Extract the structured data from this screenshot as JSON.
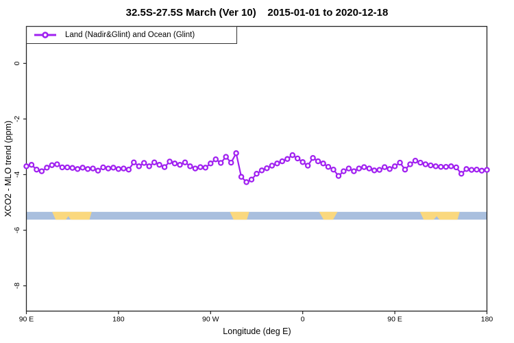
{
  "figure": {
    "title": "32.5S-27.5S March (Ver 10)    2015-01-01 to 2020-12-18"
  },
  "chart_data": {
    "type": "line",
    "title": "32.5S-27.5S March (Ver 10)    2015-01-01 to 2020-12-18",
    "xlabel": "Longitude (deg E)",
    "ylabel": "XCO2 - MLO trend (ppm)",
    "legend_label": "Land (Nadir&Glint) and Ocean (Glint)",
    "legend_position": "top-left",
    "grid": false,
    "xlim": [
      90,
      540
    ],
    "ylim_bottom": -8.91,
    "ylim_top": 1.33,
    "x_ticks": [
      {
        "lon": 90,
        "label": "90 E"
      },
      {
        "lon": 180,
        "label": "180"
      },
      {
        "lon": 270,
        "label": "90 W"
      },
      {
        "lon": 360,
        "label": "0"
      },
      {
        "lon": 450,
        "label": "90 E"
      },
      {
        "lon": 540,
        "label": "180"
      }
    ],
    "y_ticks": [
      {
        "value": 0,
        "label": "0"
      },
      {
        "value": -2,
        "label": "-2"
      },
      {
        "value": -4,
        "label": "-4"
      },
      {
        "value": -6,
        "label": "-6"
      },
      {
        "value": -8,
        "label": "-8"
      }
    ],
    "series": [
      {
        "name": "Land (Nadir&Glint) and Ocean (Glint)",
        "color": "#A020F0",
        "marker": "open-circle",
        "x_start": 90,
        "x_step": 5,
        "values": [
          -3.7,
          -3.65,
          -3.82,
          -3.88,
          -3.75,
          -3.66,
          -3.63,
          -3.74,
          -3.74,
          -3.76,
          -3.8,
          -3.75,
          -3.8,
          -3.78,
          -3.86,
          -3.74,
          -3.78,
          -3.75,
          -3.8,
          -3.78,
          -3.82,
          -3.56,
          -3.7,
          -3.58,
          -3.7,
          -3.56,
          -3.65,
          -3.73,
          -3.53,
          -3.6,
          -3.65,
          -3.56,
          -3.7,
          -3.78,
          -3.73,
          -3.75,
          -3.6,
          -3.45,
          -3.58,
          -3.36,
          -3.57,
          -3.23,
          -4.08,
          -4.27,
          -4.18,
          -3.97,
          -3.85,
          -3.77,
          -3.68,
          -3.6,
          -3.52,
          -3.44,
          -3.3,
          -3.42,
          -3.55,
          -3.68,
          -3.4,
          -3.52,
          -3.6,
          -3.72,
          -3.82,
          -4.05,
          -3.88,
          -3.78,
          -3.88,
          -3.78,
          -3.73,
          -3.78,
          -3.85,
          -3.83,
          -3.73,
          -3.8,
          -3.7,
          -3.57,
          -3.82,
          -3.63,
          -3.5,
          -3.57,
          -3.63,
          -3.67,
          -3.7,
          -3.72,
          -3.72,
          -3.7,
          -3.74,
          -3.97,
          -3.8,
          -3.83,
          -3.82,
          -3.86,
          -3.83
        ]
      }
    ],
    "surface_band": {
      "description": "land/ocean strip",
      "value_top": -5.34,
      "value_bottom": -5.62,
      "ocean_color": "#A9BFDE",
      "land_color": "#FAD87E",
      "land_patches": [
        {
          "name": "australia-west-wrap",
          "polygon": [
            [
              115.2,
              0
            ],
            [
              153.8,
              0
            ],
            [
              151.6,
              1
            ],
            [
              133.4,
              1
            ],
            [
              131.0,
              0.55
            ],
            [
              128.6,
              1
            ],
            [
              118.6,
              1
            ]
          ]
        },
        {
          "name": "south-america",
          "polygon": [
            [
              288.8,
              0
            ],
            [
              307.8,
              0
            ],
            [
              305.4,
              1
            ],
            [
              292.4,
              1
            ]
          ]
        },
        {
          "name": "southern-africa",
          "polygon": [
            [
              376.0,
              0
            ],
            [
              394.0,
              0
            ],
            [
              389.6,
              1
            ],
            [
              380.4,
              1
            ]
          ]
        },
        {
          "name": "australia-east-wrap",
          "polygon": [
            [
              474.6,
              0
            ],
            [
              513.4,
              0
            ],
            [
              511.2,
              1
            ],
            [
              493.6,
              1
            ],
            [
              490.9,
              0.55
            ],
            [
              487.9,
              1
            ],
            [
              478.2,
              1
            ]
          ]
        }
      ]
    },
    "frame_color": "#222222"
  }
}
